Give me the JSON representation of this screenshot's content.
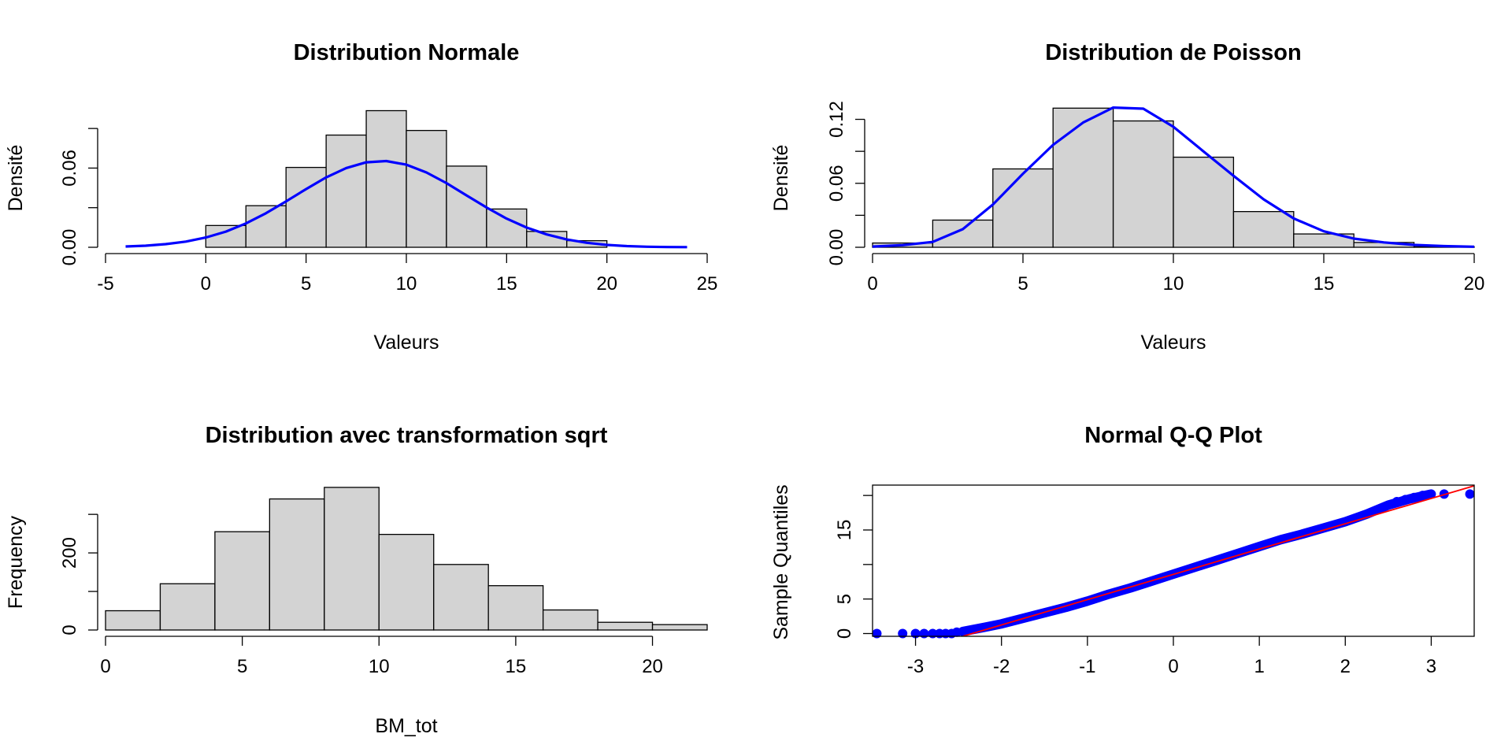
{
  "figure": {
    "background": "#ffffff"
  },
  "chart_data": [
    {
      "id": "normal",
      "type": "bar",
      "title": "Distribution Normale",
      "xlabel": "Valeurs",
      "ylabel": "Densité",
      "bins": [
        [
          0,
          2
        ],
        [
          2,
          4
        ],
        [
          4,
          6
        ],
        [
          6,
          8
        ],
        [
          8,
          10
        ],
        [
          10,
          12
        ],
        [
          12,
          14
        ],
        [
          14,
          16
        ],
        [
          16,
          18
        ],
        [
          18,
          20
        ]
      ],
      "values": [
        0.0165,
        0.0315,
        0.0605,
        0.085,
        0.1035,
        0.0885,
        0.0615,
        0.029,
        0.012,
        0.005
      ],
      "bar_color": "#d3d3d3",
      "xlim": [
        -5,
        25
      ],
      "ylim": [
        0,
        0.105
      ],
      "xticks": [
        -5,
        0,
        5,
        10,
        15,
        20,
        25
      ],
      "xtick_labels": [
        "-5",
        "0",
        "5",
        "10",
        "15",
        "20",
        "25"
      ],
      "yticks": [
        0,
        0.03,
        0.06,
        0.09
      ],
      "ytick_labels": [
        "0.00",
        "",
        "0.06",
        ""
      ],
      "curve": {
        "color": "#0000ff",
        "x": [
          -4,
          -3,
          -2,
          -1,
          0,
          1,
          2,
          3,
          4,
          5,
          6,
          7,
          8,
          9,
          10,
          11,
          12,
          13,
          14,
          15,
          16,
          17,
          18,
          19,
          20,
          21,
          22,
          23,
          24
        ],
        "y": [
          0.0006,
          0.0012,
          0.0024,
          0.0043,
          0.0074,
          0.0119,
          0.0181,
          0.0258,
          0.0348,
          0.0441,
          0.0529,
          0.06,
          0.0644,
          0.0653,
          0.0626,
          0.0567,
          0.0486,
          0.0393,
          0.0301,
          0.0217,
          0.0149,
          0.0097,
          0.0059,
          0.0034,
          0.0018,
          0.0009,
          0.0004,
          0.0002,
          0.0001
        ]
      }
    },
    {
      "id": "poisson",
      "type": "bar",
      "title": "Distribution de Poisson",
      "xlabel": "Valeurs",
      "ylabel": "Densité",
      "bins": [
        [
          0,
          2
        ],
        [
          2,
          4
        ],
        [
          4,
          6
        ],
        [
          6,
          8
        ],
        [
          8,
          10
        ],
        [
          10,
          12
        ],
        [
          12,
          14
        ],
        [
          14,
          16
        ],
        [
          16,
          18
        ],
        [
          18,
          20
        ]
      ],
      "values": [
        0.004,
        0.0255,
        0.0735,
        0.1305,
        0.1185,
        0.0845,
        0.0335,
        0.0125,
        0.0045,
        0.0005
      ],
      "bar_color": "#d3d3d3",
      "xlim": [
        0,
        20
      ],
      "ylim": [
        0,
        0.13
      ],
      "xticks": [
        0,
        5,
        10,
        15,
        20
      ],
      "xtick_labels": [
        "0",
        "5",
        "10",
        "15",
        "20"
      ],
      "yticks": [
        0,
        0.03,
        0.06,
        0.09,
        0.12
      ],
      "ytick_labels": [
        "0.00",
        "",
        "0.06",
        "",
        "0.12"
      ],
      "curve": {
        "color": "#0000ff",
        "x": [
          0,
          1,
          2,
          3,
          4,
          5,
          6,
          7,
          8,
          9,
          10,
          11,
          12,
          13,
          14,
          15,
          16,
          17,
          18,
          19,
          20
        ],
        "y": [
          0.0007,
          0.002,
          0.005,
          0.017,
          0.04,
          0.069,
          0.096,
          0.117,
          0.131,
          0.13,
          0.113,
          0.09,
          0.067,
          0.045,
          0.027,
          0.015,
          0.0081,
          0.0046,
          0.0022,
          0.0011,
          0.0005
        ]
      }
    },
    {
      "id": "sqrt",
      "type": "bar",
      "title": "Distribution avec transformation sqrt",
      "xlabel": "BM_tot",
      "ylabel": "Frequency",
      "bins": [
        [
          0,
          2
        ],
        [
          2,
          4
        ],
        [
          4,
          6
        ],
        [
          6,
          8
        ],
        [
          8,
          10
        ],
        [
          10,
          12
        ],
        [
          12,
          14
        ],
        [
          14,
          16
        ],
        [
          16,
          18
        ],
        [
          18,
          20
        ],
        [
          20,
          22
        ]
      ],
      "values": [
        50,
        120,
        255,
        340,
        370,
        248,
        170,
        115,
        52,
        20,
        14
      ],
      "bar_color": "#d3d3d3",
      "xlim": [
        0,
        22
      ],
      "ylim": [
        0,
        380
      ],
      "xticks": [
        0,
        5,
        10,
        15,
        20
      ],
      "xtick_labels": [
        "0",
        "5",
        "10",
        "15",
        "20"
      ],
      "yticks": [
        0,
        100,
        200,
        300
      ],
      "ytick_labels": [
        "0",
        "",
        "200",
        ""
      ]
    },
    {
      "id": "qq",
      "type": "scatter",
      "title": "Normal Q-Q Plot",
      "xlabel": "",
      "ylabel": "Sample Quantiles",
      "xlim": [
        -3.5,
        3.5
      ],
      "ylim": [
        -0.4,
        21.5
      ],
      "xticks": [
        -3,
        -2,
        -1,
        0,
        1,
        2,
        3
      ],
      "xtick_labels": [
        "-3",
        "-2",
        "-1",
        "0",
        "1",
        "2",
        "3"
      ],
      "yticks": [
        0,
        5,
        10,
        15,
        20
      ],
      "ytick_labels": [
        "0",
        "5",
        "",
        "15",
        ""
      ],
      "point_color": "#0000ff",
      "line_color": "#ff0000",
      "reference_line": {
        "x": [
          -2.45,
          3.5
        ],
        "y": [
          -0.4,
          21.4
        ]
      },
      "sample_curve": {
        "x": [
          -2.45,
          -2.2,
          -2.0,
          -1.75,
          -1.5,
          -1.25,
          -1.0,
          -0.75,
          -0.5,
          -0.25,
          0,
          0.25,
          0.5,
          0.75,
          1.0,
          1.25,
          1.5,
          1.75,
          2.0,
          2.25,
          2.5,
          2.75,
          3.0
        ],
        "y": [
          0.3,
          0.9,
          1.4,
          2.2,
          3.0,
          3.8,
          4.7,
          5.7,
          6.6,
          7.6,
          8.6,
          9.6,
          10.6,
          11.6,
          12.6,
          13.6,
          14.4,
          15.3,
          16.2,
          17.3,
          18.6,
          19.5,
          20.2
        ]
      },
      "points_x": [
        -3.45,
        -3.15,
        -3.0,
        -2.9,
        -2.8,
        -2.72,
        -2.65,
        -2.58,
        -2.52,
        2.6,
        2.7,
        2.8,
        2.9,
        3.15,
        3.45
      ],
      "points_y": [
        0,
        0,
        0,
        0,
        0,
        0,
        0,
        0,
        0.2,
        19.1,
        19.4,
        19.7,
        20.0,
        20.2,
        20.2
      ]
    }
  ]
}
